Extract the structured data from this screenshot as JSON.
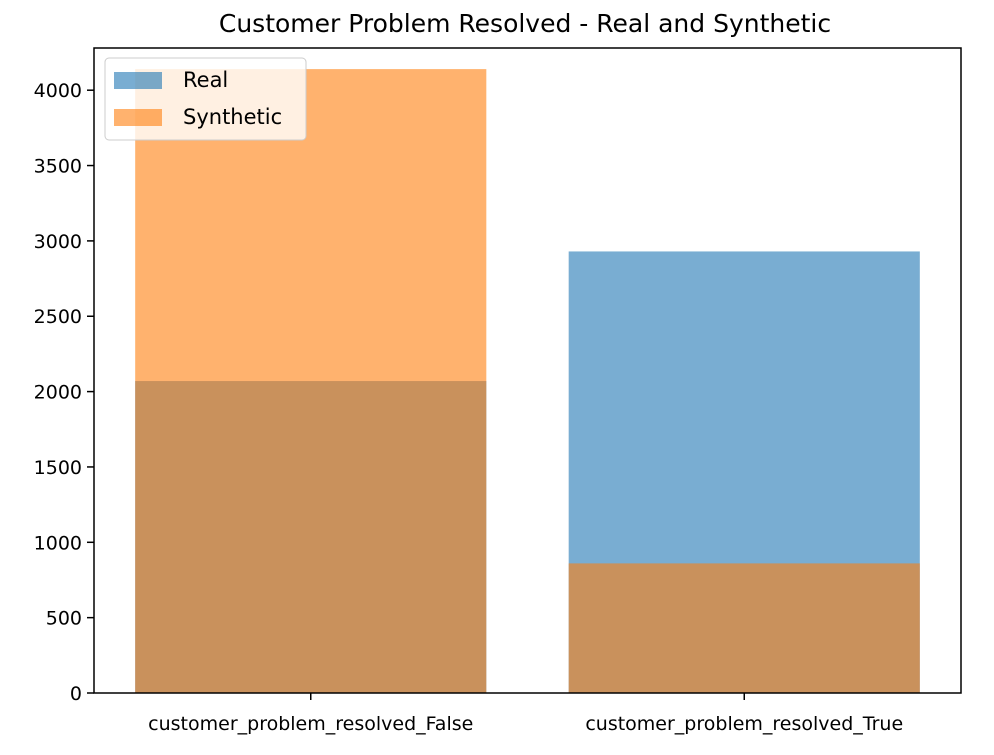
{
  "chart_data": {
    "type": "bar",
    "title": "Customer Problem Resolved - Real and Synthetic",
    "xlabel": "",
    "ylabel": "",
    "categories": [
      "customer_problem_resolved_False",
      "customer_problem_resolved_True"
    ],
    "series": [
      {
        "name": "Real",
        "values": [
          2070,
          2930
        ],
        "color": "#1f77b4",
        "opacity": 0.6
      },
      {
        "name": "Synthetic",
        "values": [
          4140,
          860
        ],
        "color": "#ff7f0e",
        "opacity": 0.6
      }
    ],
    "ylim": [
      0,
      4280
    ],
    "yticks": [
      0,
      500,
      1000,
      1500,
      2000,
      2500,
      3000,
      3500,
      4000
    ],
    "grid": false,
    "legend_position": "top-left"
  }
}
